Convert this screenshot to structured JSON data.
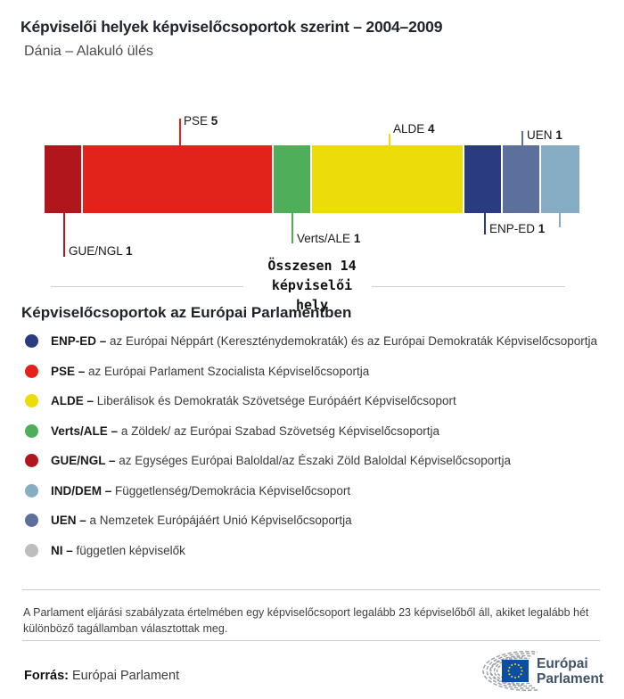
{
  "title": "Képviselői helyek képviselőcsoportok szerint – 2004–2009",
  "subtitle": "Dánia – Alakuló ülés",
  "chart_data": {
    "type": "bar",
    "variant": "single-stacked-horizontal-seat-bar",
    "title": "Képviselői helyek képviselőcsoportok szerint – 2004–2009",
    "subtitle": "Dánia – Alakuló ülés",
    "total": {
      "value": 14,
      "label_lines": [
        "Összesen 14",
        "képviselői",
        "hely"
      ]
    },
    "categories": [
      "GUE/NGL",
      "PSE",
      "Verts/ALE",
      "ALDE",
      "ENP-ED",
      "UEN",
      "IND/DEM"
    ],
    "values": [
      1,
      5,
      1,
      4,
      1,
      1,
      1
    ],
    "segments": [
      {
        "group": "GUE/NGL",
        "seats": 1,
        "color": "#B2161D",
        "label_position": "below"
      },
      {
        "group": "PSE",
        "seats": 5,
        "color": "#E2231B",
        "label_position": "above"
      },
      {
        "group": "Verts/ALE",
        "seats": 1,
        "color": "#4FAE59",
        "label_position": "below"
      },
      {
        "group": "ALDE",
        "seats": 4,
        "color": "#EBDC0A",
        "label_position": "above"
      },
      {
        "group": "ENP-ED",
        "seats": 1,
        "color": "#2A3B80",
        "label_position": "below"
      },
      {
        "group": "UEN",
        "seats": 1,
        "color": "#5C6F9D",
        "label_position": "above"
      },
      {
        "group": "IND/DEM",
        "seats": 1,
        "color": "#87ADC5",
        "label_position": "below"
      }
    ]
  },
  "legend": {
    "heading": "Képviselőcsoportok az Európai Parlamentben",
    "items": [
      {
        "label": "ENP-ED –",
        "color": "#2A3B80",
        "desc": "az Európai Néppárt (Kereszténydemokraták) és az Európai Demokraták Képviselőcsoportja"
      },
      {
        "label": "PSE –",
        "color": "#E2231B",
        "desc": "az Európai Parlament Szocialista Képviselőcsoportja"
      },
      {
        "label": "ALDE –",
        "color": "#EBDC0A",
        "desc": "Liberálisok és Demokraták Szövetsége Európáért Képviselőcsoport"
      },
      {
        "label": "Verts/ALE –",
        "color": "#4FAE59",
        "desc": "a Zöldek/ az Európai Szabad Szövetség Képviselőcsoportja"
      },
      {
        "label": "GUE/NGL –",
        "color": "#B2161D",
        "desc": "az Egységes Európai Baloldal/az Északi Zöld Baloldal Képviselőcsoportja"
      },
      {
        "label": "IND/DEM –",
        "color": "#87ADC5",
        "desc": "Függetlenség/Demokrácia Képviselőcsoport"
      },
      {
        "label": "UEN –",
        "color": "#5C6F9D",
        "desc": "a Nemzetek Európájáért Unió Képviselőcsoportja"
      },
      {
        "label": "NI –",
        "color": "#BDBDBD",
        "desc": "független képviselők"
      }
    ]
  },
  "footnote": "A Parlament eljárási szabályzata értelmében egy képviselőcsoport legalább 23 képviselőből áll, akiket legalább hét különböző tagállamban választottak meg.",
  "source": {
    "label": "Forrás:",
    "value": "Európai Parlament"
  },
  "logo": {
    "line1": "Európai",
    "line2": "Parlament",
    "flag_icon": "eu-flag",
    "arcs_icon": "hemicycle-arcs",
    "flag_color": "#0B4EA2",
    "star_color": "#FFD617",
    "text_color": "#3E5366"
  }
}
